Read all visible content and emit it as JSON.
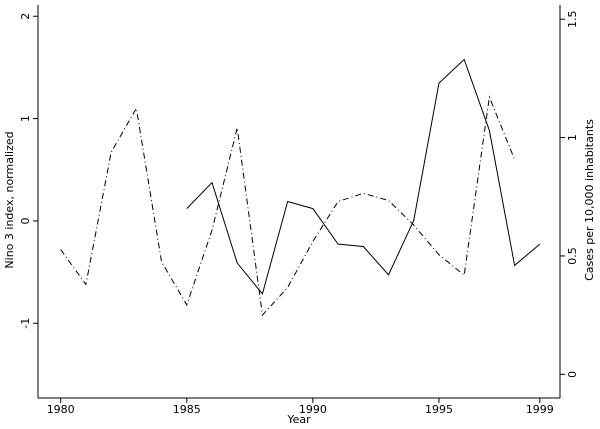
{
  "chart_data": {
    "type": "line",
    "x_label": "Year",
    "y_label": "Nino  3 index, normalized",
    "y2_label": "Cases per 10,000 inhabitants",
    "x": [
      1980,
      1981,
      1982,
      1983,
      1984,
      1985,
      1986,
      1987,
      1988,
      1989,
      1990,
      1991,
      1992,
      1993,
      1994,
      1995,
      1996,
      1997,
      1998,
      1999
    ],
    "series": [
      {
        "color": "#000000",
        "style": "dashdot",
        "values": [
          -0.28,
          -0.62,
          0.67,
          1.1,
          -0.4,
          -0.82,
          -0.09,
          0.91,
          -0.92,
          -0.65,
          -0.2,
          0.19,
          0.27,
          0.2,
          -0.04,
          -0.33,
          -0.53,
          1.21,
          0.6,
          null
        ]
      },
      {
        "color": "#000000",
        "style": "solid",
        "axis": "y2",
        "values": [
          null,
          null,
          null,
          null,
          null,
          0.7,
          0.81,
          0.47,
          0.34,
          0.73,
          0.7,
          0.55,
          0.54,
          0.42,
          0.65,
          1.23,
          1.33,
          1.03,
          0.46,
          0.55
        ]
      }
    ],
    "xlim": [
      1979.1,
      1999.8
    ],
    "xticks": [
      1980,
      1985,
      1990,
      1995,
      1999
    ],
    "ylim": [
      -1.73,
      2.11
    ],
    "yticks": [
      -1,
      0,
      1,
      2
    ],
    "y2lim": [
      -0.1,
      1.56
    ],
    "y2ticks": [
      0,
      0.5,
      1,
      1.5
    ]
  }
}
